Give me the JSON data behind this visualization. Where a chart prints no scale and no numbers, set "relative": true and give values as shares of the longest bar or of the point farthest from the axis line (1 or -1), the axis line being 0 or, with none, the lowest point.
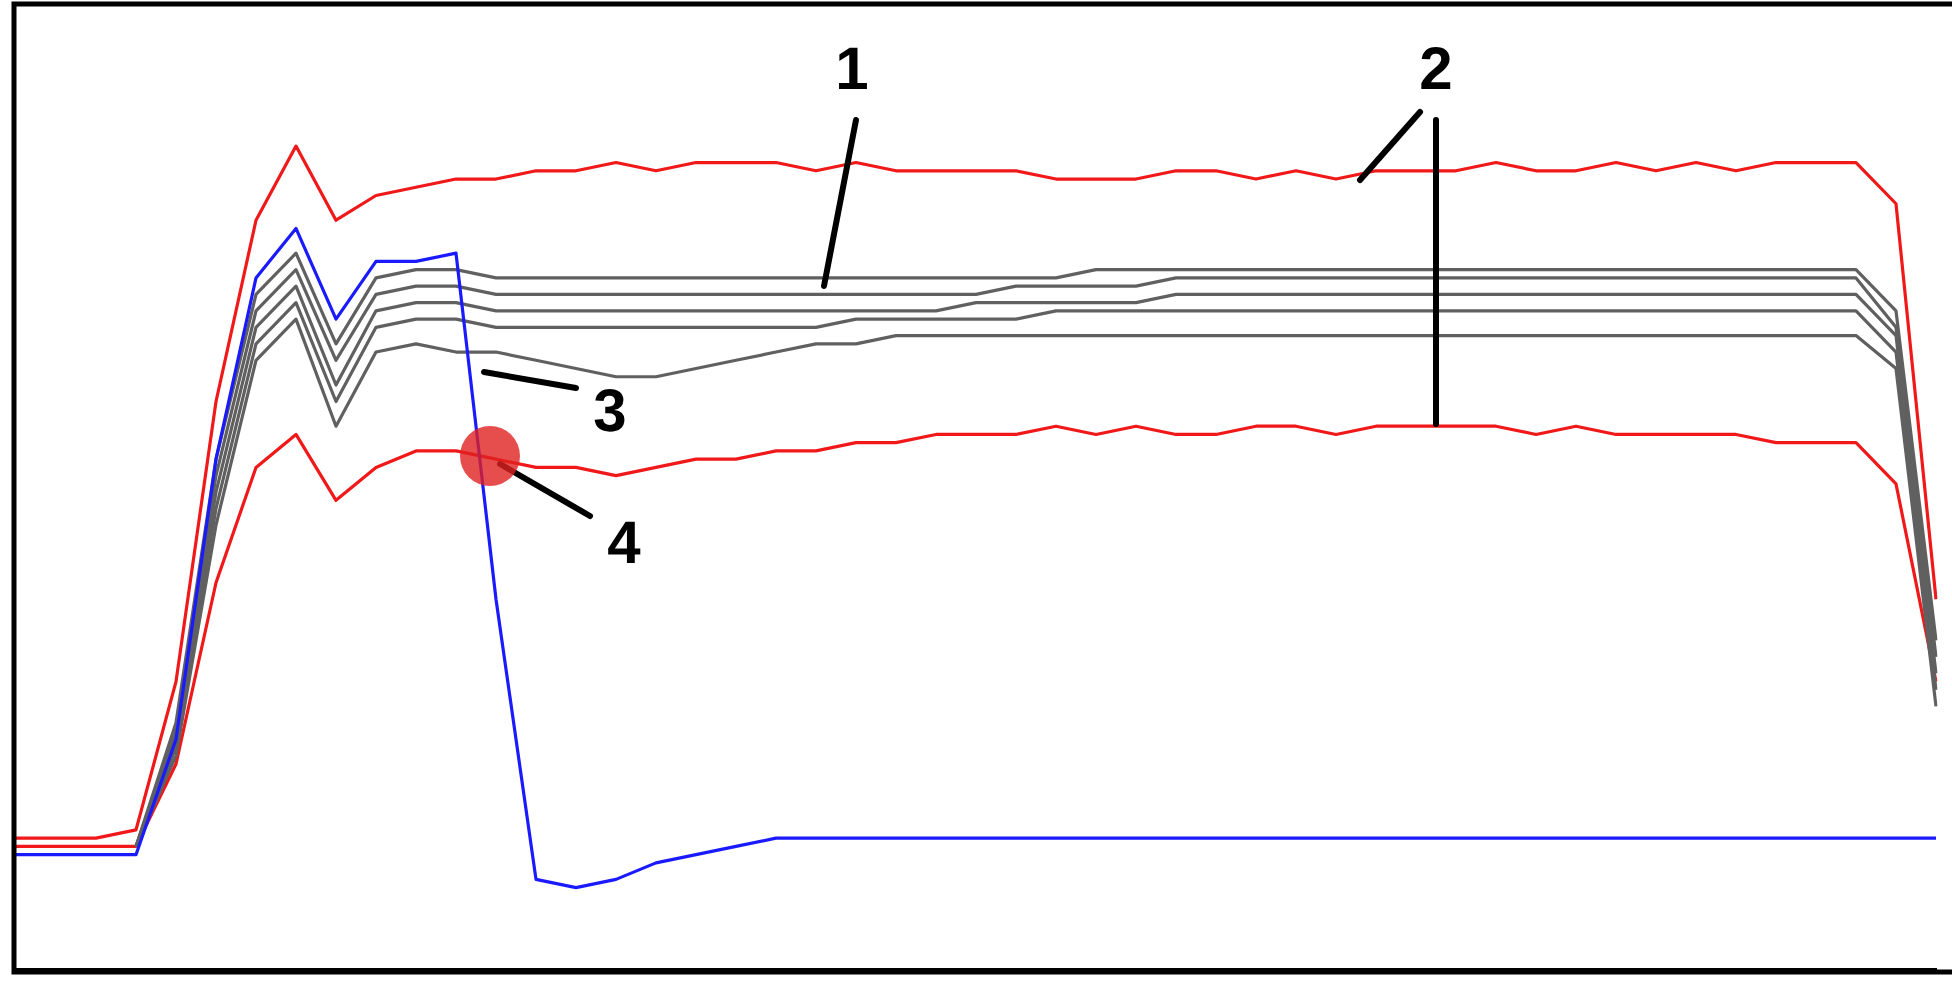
{
  "chart_data": {
    "type": "line",
    "relative": true,
    "grid": false,
    "legend": false,
    "tick_labels": false,
    "marker": "none",
    "line_style": "solid",
    "categories": [
      null,
      null,
      null,
      null,
      null,
      null,
      null,
      null,
      null,
      null,
      null,
      null,
      null,
      null,
      null,
      null,
      null,
      null,
      null,
      null,
      null,
      null,
      null,
      null,
      null,
      null,
      null,
      null,
      null,
      null,
      null,
      null,
      null,
      null,
      null,
      null,
      null,
      null,
      null,
      null,
      null,
      null,
      null,
      null,
      null,
      null,
      null,
      null,
      null
    ],
    "annotations": [
      "1",
      "2",
      "3",
      "4"
    ],
    "series": [
      {
        "color": "#f01818",
        "values": [
          0.16,
          0.16,
          0.16,
          0.17,
          0.35,
          0.69,
          0.91,
          1,
          0.91,
          0.94,
          0.95,
          0.96,
          0.96,
          0.97,
          0.97,
          0.98,
          0.97,
          0.98,
          0.98,
          0.98,
          0.97,
          0.98,
          0.97,
          0.97,
          0.97,
          0.97,
          0.96,
          0.96,
          0.96,
          0.97,
          0.97,
          0.96,
          0.97,
          0.96,
          0.97,
          0.97,
          0.97,
          0.98,
          0.97,
          0.97,
          0.98,
          0.97,
          0.98,
          0.97,
          0.98,
          0.98,
          0.98,
          0.93,
          0.45
        ]
      },
      {
        "color": "#f01818",
        "values": [
          0.15,
          0.15,
          0.15,
          0.15,
          0.25,
          0.47,
          0.61,
          0.65,
          0.57,
          0.61,
          0.63,
          0.63,
          0.62,
          0.61,
          0.61,
          0.6,
          0.61,
          0.62,
          0.62,
          0.63,
          0.63,
          0.64,
          0.64,
          0.65,
          0.65,
          0.65,
          0.66,
          0.65,
          0.66,
          0.65,
          0.65,
          0.66,
          0.66,
          0.65,
          0.66,
          0.66,
          0.66,
          0.66,
          0.65,
          0.66,
          0.65,
          0.65,
          0.65,
          0.65,
          0.64,
          0.64,
          0.64,
          0.59,
          0.35
        ]
      },
      {
        "color": "#606060",
        "values": [
          null,
          null,
          null,
          0.15,
          0.3,
          0.62,
          0.82,
          0.87,
          0.76,
          0.84,
          0.85,
          0.85,
          0.84,
          0.84,
          0.84,
          0.84,
          0.84,
          0.84,
          0.84,
          0.84,
          0.84,
          0.84,
          0.84,
          0.84,
          0.84,
          0.84,
          0.84,
          0.85,
          0.85,
          0.85,
          0.85,
          0.85,
          0.85,
          0.85,
          0.85,
          0.85,
          0.85,
          0.85,
          0.85,
          0.85,
          0.85,
          0.85,
          0.85,
          0.85,
          0.85,
          0.85,
          0.85,
          0.8,
          0.4
        ]
      },
      {
        "color": "#606060",
        "values": [
          null,
          null,
          null,
          0.15,
          0.29,
          0.6,
          0.8,
          0.85,
          0.74,
          0.82,
          0.83,
          0.83,
          0.82,
          0.82,
          0.82,
          0.82,
          0.82,
          0.82,
          0.82,
          0.82,
          0.82,
          0.82,
          0.82,
          0.82,
          0.82,
          0.83,
          0.83,
          0.83,
          0.83,
          0.84,
          0.84,
          0.84,
          0.84,
          0.84,
          0.84,
          0.84,
          0.84,
          0.84,
          0.84,
          0.84,
          0.84,
          0.84,
          0.84,
          0.84,
          0.84,
          0.84,
          0.84,
          0.78,
          0.38
        ]
      },
      {
        "color": "#606060",
        "values": [
          null,
          null,
          null,
          0.15,
          0.28,
          0.58,
          0.78,
          0.83,
          0.71,
          0.8,
          0.81,
          0.81,
          0.8,
          0.8,
          0.8,
          0.8,
          0.8,
          0.8,
          0.8,
          0.8,
          0.8,
          0.8,
          0.8,
          0.8,
          0.81,
          0.81,
          0.81,
          0.81,
          0.81,
          0.82,
          0.82,
          0.82,
          0.82,
          0.82,
          0.82,
          0.82,
          0.82,
          0.82,
          0.82,
          0.82,
          0.82,
          0.82,
          0.82,
          0.82,
          0.82,
          0.82,
          0.82,
          0.77,
          0.36
        ]
      },
      {
        "color": "#606060",
        "values": [
          null,
          null,
          null,
          0.15,
          0.27,
          0.56,
          0.76,
          0.81,
          0.69,
          0.78,
          0.79,
          0.79,
          0.78,
          0.78,
          0.78,
          0.78,
          0.78,
          0.78,
          0.78,
          0.78,
          0.78,
          0.79,
          0.79,
          0.79,
          0.79,
          0.79,
          0.8,
          0.8,
          0.8,
          0.8,
          0.8,
          0.8,
          0.8,
          0.8,
          0.8,
          0.8,
          0.8,
          0.8,
          0.8,
          0.8,
          0.8,
          0.8,
          0.8,
          0.8,
          0.8,
          0.8,
          0.8,
          0.75,
          0.34
        ]
      },
      {
        "color": "#606060",
        "values": [
          null,
          null,
          null,
          0.15,
          0.26,
          0.54,
          0.74,
          0.79,
          0.66,
          0.75,
          0.76,
          0.75,
          0.75,
          0.74,
          0.73,
          0.72,
          0.72,
          0.73,
          0.74,
          0.75,
          0.76,
          0.76,
          0.77,
          0.77,
          0.77,
          0.77,
          0.77,
          0.77,
          0.77,
          0.77,
          0.77,
          0.77,
          0.77,
          0.77,
          0.77,
          0.77,
          0.77,
          0.77,
          0.77,
          0.77,
          0.77,
          0.77,
          0.77,
          0.77,
          0.77,
          0.77,
          0.77,
          0.73,
          0.32
        ]
      },
      {
        "color": "#1a1aff",
        "values": [
          0.14,
          0.14,
          0.14,
          0.14,
          0.28,
          0.62,
          0.84,
          0.9,
          0.79,
          0.86,
          0.86,
          0.87,
          0.45,
          0.11,
          0.1,
          0.11,
          0.13,
          0.14,
          0.15,
          0.16,
          0.16,
          0.16,
          0.16,
          0.16,
          0.16,
          0.16,
          0.16,
          0.16,
          0.16,
          0.16,
          0.16,
          0.16,
          0.16,
          0.16,
          0.16,
          0.16,
          0.16,
          0.16,
          0.16,
          0.16,
          0.16,
          0.16,
          0.16,
          0.16,
          0.16,
          0.16,
          0.16,
          0.16,
          0.16
        ]
      }
    ]
  }
}
